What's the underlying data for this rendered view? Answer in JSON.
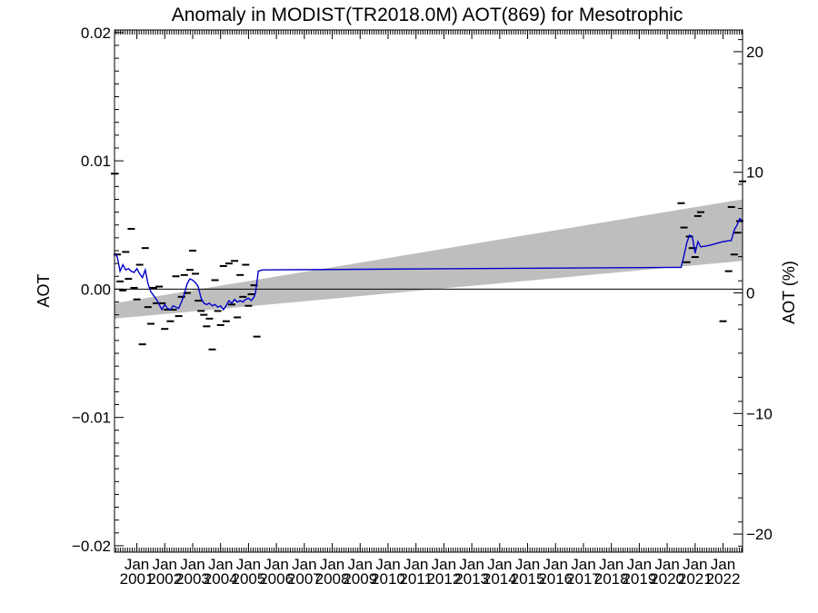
{
  "chart_data": {
    "type": "line",
    "title": "Anomaly in MODIST(TR2018.0M) AOT(869) for Mesotrophic",
    "ylabel_left": "AOT",
    "ylabel_right": "AOT (%)",
    "ylim": [
      -0.0205,
      0.0202
    ],
    "ylim_right": [
      -21.5,
      21.8
    ],
    "xlim": [
      2000.2,
      2022.7
    ],
    "yticks_left": [
      {
        "value": -0.02,
        "label": "−0.02"
      },
      {
        "value": -0.01,
        "label": "−0.01"
      },
      {
        "value": 0.0,
        "label": "0.00"
      },
      {
        "value": 0.01,
        "label": "0.01"
      },
      {
        "value": 0.02,
        "label": "0.02"
      }
    ],
    "yticks_right": [
      {
        "value": -20,
        "label": "−20"
      },
      {
        "value": -10,
        "label": "−10"
      },
      {
        "value": 0,
        "label": "0"
      },
      {
        "value": 10,
        "label": "10"
      },
      {
        "value": 20,
        "label": "20"
      }
    ],
    "xticks": [
      {
        "value": 2001,
        "month": "Jan",
        "year": "2001"
      },
      {
        "value": 2002,
        "month": "Jan",
        "year": "2002"
      },
      {
        "value": 2003,
        "month": "Jan",
        "year": "2003"
      },
      {
        "value": 2004,
        "month": "Jan",
        "year": "2004"
      },
      {
        "value": 2005,
        "month": "Jan",
        "year": "2005"
      },
      {
        "value": 2006,
        "month": "Jan",
        "year": "2006"
      },
      {
        "value": 2007,
        "month": "Jan",
        "year": "2007"
      },
      {
        "value": 2008,
        "month": "Jan",
        "year": "2008"
      },
      {
        "value": 2009,
        "month": "Jan",
        "year": "2009"
      },
      {
        "value": 2010,
        "month": "Jan",
        "year": "2010"
      },
      {
        "value": 2011,
        "month": "Jan",
        "year": "2011"
      },
      {
        "value": 2012,
        "month": "Jan",
        "year": "2012"
      },
      {
        "value": 2013,
        "month": "Jan",
        "year": "2013"
      },
      {
        "value": 2014,
        "month": "Jan",
        "year": "2014"
      },
      {
        "value": 2015,
        "month": "Jan",
        "year": "2015"
      },
      {
        "value": 2016,
        "month": "Jan",
        "year": "2016"
      },
      {
        "value": 2017,
        "month": "Jan",
        "year": "2017"
      },
      {
        "value": 2018,
        "month": "Jan",
        "year": "2018"
      },
      {
        "value": 2019,
        "month": "Jan",
        "year": "2019"
      },
      {
        "value": 2020,
        "month": "Jan",
        "year": "2020"
      },
      {
        "value": 2021,
        "month": "Jan",
        "year": "2021"
      },
      {
        "value": 2022,
        "month": "Jan",
        "year": "2022"
      }
    ],
    "zero_line": 0.0,
    "trend_band": {
      "color": "#bebebe",
      "x": [
        2000.2,
        2022.7
      ],
      "lower": [
        -0.0023,
        0.0022
      ],
      "upper": [
        -0.0011,
        0.007
      ]
    },
    "smoothed_series": {
      "color": "#0000cc",
      "x": [
        2000.2,
        2000.3,
        2000.4,
        2000.5,
        2000.6,
        2000.7,
        2000.8,
        2000.9,
        2001.0,
        2001.1,
        2001.2,
        2001.3,
        2001.4,
        2001.5,
        2001.6,
        2001.7,
        2001.8,
        2001.9,
        2002.0,
        2002.1,
        2002.2,
        2002.3,
        2002.4,
        2002.5,
        2002.6,
        2002.7,
        2002.8,
        2002.9,
        2003.0,
        2003.1,
        2003.2,
        2003.3,
        2003.4,
        2003.5,
        2003.6,
        2003.7,
        2003.8,
        2003.9,
        2004.0,
        2004.1,
        2004.2,
        2004.3,
        2004.4,
        2004.5,
        2004.6,
        2004.7,
        2004.8,
        2004.9,
        2005.0,
        2005.1,
        2005.2,
        2005.25,
        2005.3,
        2005.35,
        2005.5,
        2020.4,
        2020.5,
        2020.6,
        2020.7,
        2020.8,
        2020.9,
        2021.0,
        2021.1,
        2021.2,
        2021.5,
        2022.0,
        2022.3,
        2022.4,
        2022.5,
        2022.6,
        2022.7
      ],
      "y": [
        0.0028,
        0.0025,
        0.0014,
        0.0019,
        0.0015,
        0.0016,
        0.0014,
        0.0013,
        0.0016,
        0.0012,
        0.0009,
        0.0015,
        0.0004,
        -0.0002,
        -0.0005,
        -0.0008,
        -0.0012,
        -0.0016,
        -0.0012,
        -0.0015,
        -0.0016,
        -0.0013,
        -0.0014,
        -0.0015,
        -0.001,
        -0.0004,
        0.0004,
        0.0008,
        0.0007,
        0.0005,
        0.0002,
        -0.0007,
        -0.0011,
        -0.0012,
        -0.0011,
        -0.0013,
        -0.0012,
        -0.0014,
        -0.0013,
        -0.0016,
        -0.0013,
        -0.0009,
        -0.0011,
        -0.0008,
        -0.001,
        -0.0009,
        -0.001,
        -0.0008,
        -0.0007,
        -0.0009,
        -0.0006,
        -0.0003,
        0.0005,
        0.0014,
        0.0015,
        0.0017,
        0.0017,
        0.0026,
        0.0036,
        0.0042,
        0.0041,
        0.0028,
        0.0037,
        0.0033,
        0.0034,
        0.0037,
        0.0038,
        0.0046,
        0.005,
        0.0055,
        0.0053
      ]
    },
    "monthly_points": {
      "color": "#000000",
      "x": [
        2000.2,
        2000.3,
        2000.4,
        2000.5,
        2000.6,
        2000.7,
        2000.8,
        2000.9,
        2001.0,
        2001.1,
        2001.2,
        2001.3,
        2001.4,
        2001.5,
        2001.6,
        2001.7,
        2001.8,
        2001.9,
        2002.0,
        2002.1,
        2002.2,
        2002.3,
        2002.4,
        2002.5,
        2002.6,
        2002.7,
        2002.8,
        2002.9,
        2003.0,
        2003.1,
        2003.2,
        2003.3,
        2003.4,
        2003.5,
        2003.6,
        2003.7,
        2003.8,
        2003.9,
        2004.0,
        2004.1,
        2004.2,
        2004.3,
        2004.4,
        2004.5,
        2004.6,
        2004.7,
        2004.8,
        2004.9,
        2005.0,
        2005.1,
        2005.2,
        2005.3,
        2020.5,
        2020.6,
        2020.7,
        2020.8,
        2020.9,
        2021.0,
        2021.1,
        2021.2,
        2022.0,
        2022.2,
        2022.3,
        2022.4,
        2022.5,
        2022.6,
        2022.7
      ],
      "y": [
        0.009,
        0.0027,
        0.0006,
        -0.0001,
        0.0029,
        0.0008,
        0.0047,
        0.0001,
        -0.0008,
        0.0019,
        -0.0043,
        0.0032,
        -0.0014,
        -0.0027,
        0.0001,
        -0.0011,
        0.0002,
        -0.0011,
        -0.0031,
        -0.0016,
        -0.0025,
        -0.0016,
        0.001,
        -0.0021,
        -0.0006,
        0.0011,
        -0.0003,
        0.0015,
        0.003,
        0.0012,
        -0.0009,
        -0.0017,
        -0.002,
        -0.0029,
        -0.0023,
        -0.0047,
        0.0007,
        -0.0017,
        -0.0028,
        0.0018,
        -0.0025,
        0.002,
        -0.0012,
        0.0022,
        -0.0022,
        0.0011,
        -0.0006,
        0.0019,
        -0.0013,
        -0.0004,
        0.0003,
        -0.0037,
        0.0067,
        0.0048,
        0.0021,
        0.0041,
        0.0032,
        0.0025,
        0.0057,
        0.006,
        -0.0025,
        0.0014,
        0.0064,
        0.0027,
        0.0044,
        0.0053,
        0.0084
      ]
    }
  }
}
